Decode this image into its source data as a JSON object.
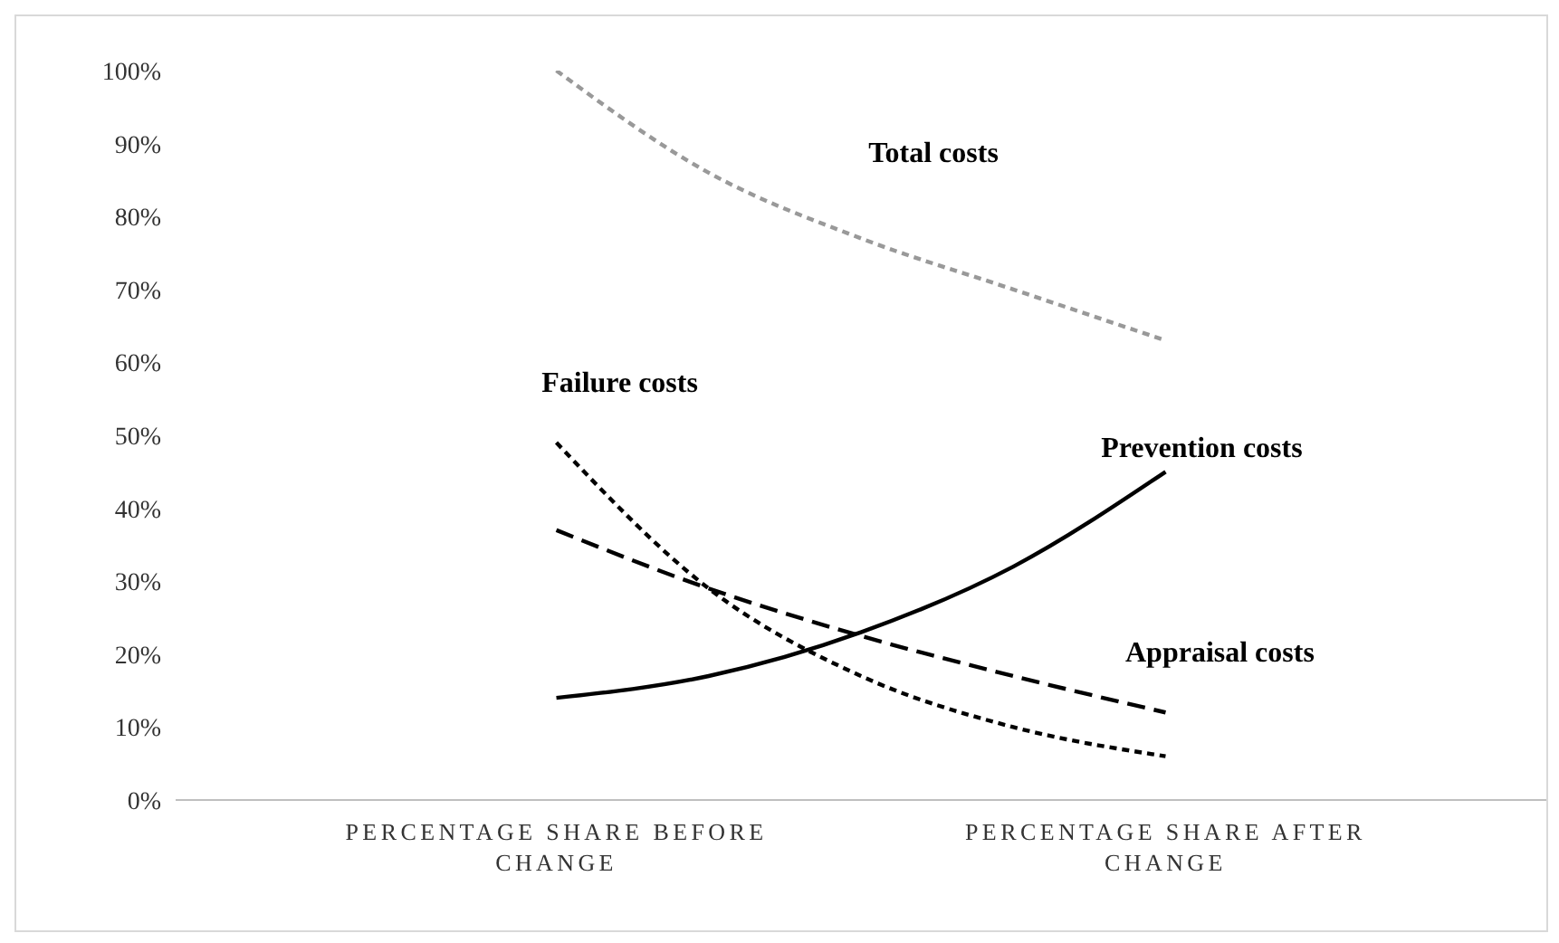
{
  "chart_data": {
    "type": "line",
    "categories": [
      null,
      null,
      "PERCENTAGE SHARE BEFORE CHANGE",
      null,
      null,
      null,
      "PERCENTAGE SHARE AFTER CHANGE",
      null,
      null
    ],
    "ylim": [
      0,
      100
    ],
    "yticks": [
      {
        "value": 0,
        "label": "0%"
      },
      {
        "value": 10,
        "label": "10%"
      },
      {
        "value": 20,
        "label": "20%"
      },
      {
        "value": 30,
        "label": "30%"
      },
      {
        "value": 40,
        "label": "40%"
      },
      {
        "value": 50,
        "label": "50%"
      },
      {
        "value": 60,
        "label": "60%"
      },
      {
        "value": 70,
        "label": "70%"
      },
      {
        "value": 80,
        "label": "80%"
      },
      {
        "value": 90,
        "label": "90%"
      },
      {
        "value": 100,
        "label": "100%"
      }
    ],
    "grid": false,
    "legend": false,
    "marker": "none",
    "series": [
      {
        "name": "Total costs",
        "color": "#999999",
        "line_style": "dotted",
        "values": [
          null,
          null,
          100,
          86,
          77,
          70,
          63,
          null,
          null
        ]
      },
      {
        "name": "Failure costs",
        "color": "#000000",
        "line_style": "dotted",
        "values": [
          null,
          null,
          49,
          29,
          17,
          10,
          6,
          null,
          null
        ]
      },
      {
        "name": "Prevention costs",
        "color": "#000000",
        "line_style": "solid",
        "values": [
          null,
          null,
          14,
          17,
          23,
          32,
          45,
          null,
          null
        ]
      },
      {
        "name": "Appraisal costs",
        "color": "#000000",
        "line_style": "dashed",
        "values": [
          null,
          null,
          37,
          29,
          22.5,
          17,
          12,
          null,
          null
        ]
      }
    ]
  }
}
